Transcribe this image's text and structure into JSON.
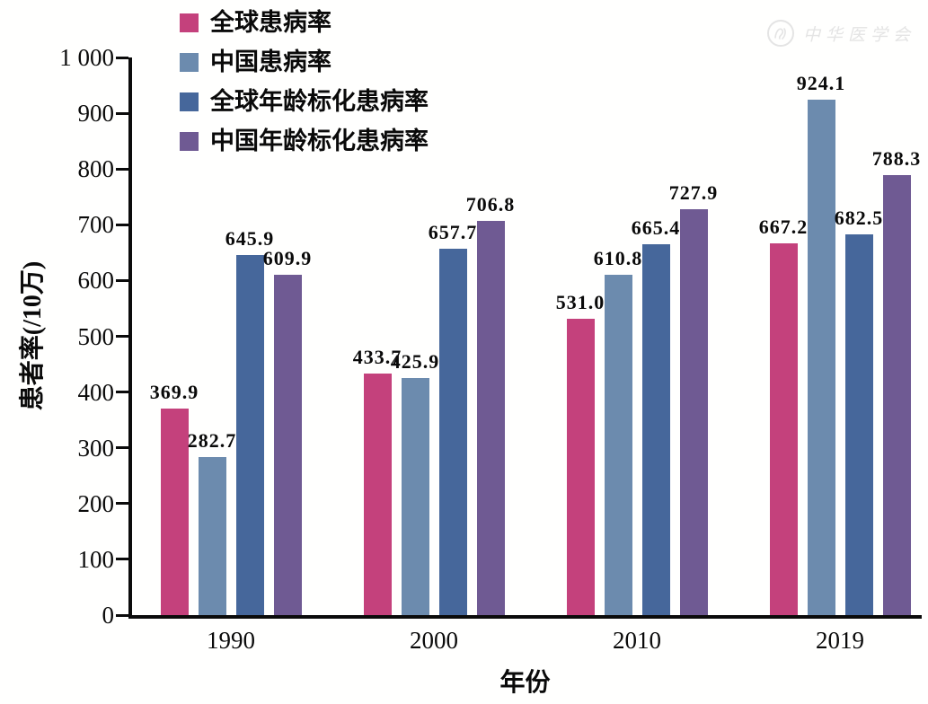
{
  "watermark": {
    "text": "中华医学会"
  },
  "chart_data": {
    "type": "bar",
    "title": "",
    "categories": [
      "1990",
      "2000",
      "2010",
      "2019"
    ],
    "series": [
      {
        "name": "全球患病率",
        "color": "#C4417C",
        "values": [
          369.9,
          433.7,
          531.0,
          667.2
        ]
      },
      {
        "name": "中国患病率",
        "color": "#6C8BAE",
        "values": [
          282.7,
          425.9,
          610.8,
          924.1
        ]
      },
      {
        "name": "全球年龄标化患病率",
        "color": "#46679B",
        "values": [
          645.9,
          657.7,
          665.4,
          682.5
        ]
      },
      {
        "name": "中国年龄标化患病率",
        "color": "#6F5A93",
        "values": [
          609.9,
          706.8,
          727.9,
          788.3
        ]
      }
    ],
    "xlabel": "年份",
    "ylabel": "患者率(/10万)",
    "ylim": [
      0,
      1000
    ],
    "ytick_step": 100,
    "ytick_labels": [
      "0",
      "100",
      "200",
      "300",
      "400",
      "500",
      "600",
      "700",
      "800",
      "900",
      "1 000"
    ],
    "legend_position": "top-left",
    "grid": false,
    "bar_labels": true,
    "axis_color": "#0b0b0b"
  }
}
